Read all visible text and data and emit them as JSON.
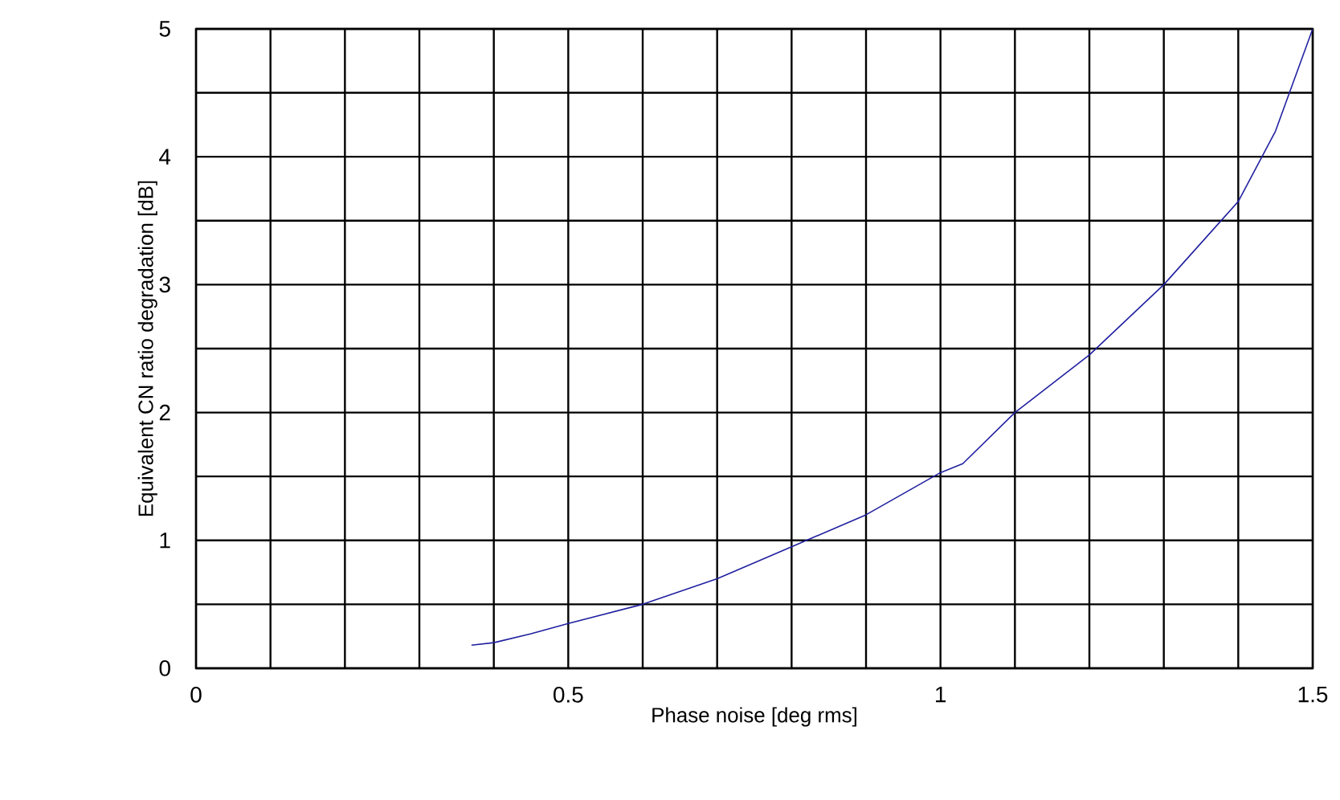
{
  "chart_data": {
    "type": "line",
    "xlabel": "Phase noise [deg rms]",
    "ylabel": "Equivalent CN ratio degradation [dB]",
    "x": [
      0.37,
      0.4,
      0.45,
      0.5,
      0.6,
      0.7,
      0.8,
      0.9,
      1.0,
      1.03,
      1.1,
      1.2,
      1.3,
      1.4,
      1.45,
      1.5
    ],
    "series": [
      {
        "color": "#2020a0",
        "values": [
          0.18,
          0.2,
          0.27,
          0.35,
          0.5,
          0.7,
          0.95,
          1.2,
          1.53,
          1.6,
          2.0,
          2.45,
          3.0,
          3.65,
          4.2,
          5.0
        ]
      }
    ],
    "xlim": [
      0,
      1.5
    ],
    "ylim": [
      0,
      5
    ],
    "xticks": [
      0,
      {
        "value": 0.1,
        "label": null
      },
      {
        "value": 0.2,
        "label": null
      },
      {
        "value": 0.3,
        "label": null
      },
      {
        "value": 0.4,
        "label": null
      },
      0.5,
      {
        "value": 0.6,
        "label": null
      },
      {
        "value": 0.7,
        "label": null
      },
      {
        "value": 0.8,
        "label": null
      },
      {
        "value": 0.9,
        "label": null
      },
      1,
      {
        "value": 1.1,
        "label": null
      },
      {
        "value": 1.2,
        "label": null
      },
      {
        "value": 1.3,
        "label": null
      },
      {
        "value": 1.4,
        "label": null
      },
      1.5
    ],
    "yticks": [
      0,
      {
        "value": 0.5,
        "label": null
      },
      1,
      {
        "value": 1.5,
        "label": null
      },
      2,
      {
        "value": 2.5,
        "label": null
      },
      3,
      {
        "value": 3.5,
        "label": null
      },
      4,
      {
        "value": 4.5,
        "label": null
      },
      5
    ],
    "grid": true,
    "marker": "none",
    "line_style": "solid"
  }
}
